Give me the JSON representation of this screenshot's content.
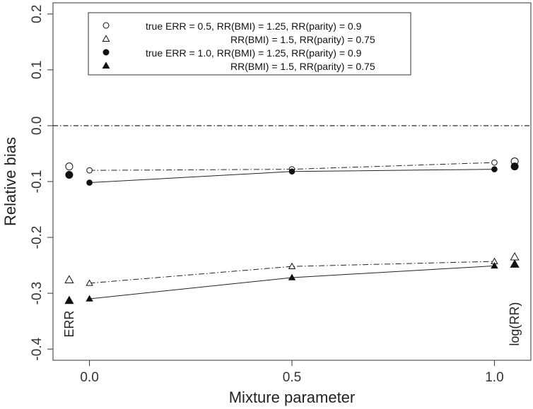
{
  "chart_data": {
    "type": "scatter",
    "xlabel": "Mixture parameter",
    "ylabel": "Relative bias",
    "xlim": [
      -0.09,
      1.09
    ],
    "ylim": [
      -0.42,
      0.22
    ],
    "x_ticks": [
      0.0,
      0.5,
      1.0
    ],
    "x_tick_labels": [
      "0.0",
      "0.5",
      "1.0"
    ],
    "y_ticks": [
      -0.4,
      -0.3,
      -0.2,
      -0.1,
      0.0,
      0.1,
      0.2
    ],
    "y_tick_labels": [
      "-0.4",
      "-0.3",
      "-0.2",
      "-0.1",
      "0.0",
      "0.1",
      "0.2"
    ],
    "reference_line": {
      "y": 0.0,
      "style": "dash-dot"
    },
    "grid": false,
    "legend_position": "top",
    "legend": [
      {
        "marker": "open-circle",
        "text": "true ERR = 0.5,   RR(BMI) = 1.25, RR(parity) = 0.9"
      },
      {
        "marker": "open-triangle",
        "text": "RR(BMI) = 1.5,   RR(parity) = 0.75"
      },
      {
        "marker": "filled-circle",
        "text": "true ERR = 1.0,   RR(BMI) = 1.25, RR(parity) = 0.9"
      },
      {
        "marker": "filled-triangle",
        "text": "RR(BMI) = 1.5,   RR(parity) = 0.75"
      }
    ],
    "annotations": [
      {
        "text": "ERR",
        "x": -0.05,
        "y": -0.355
      },
      {
        "text": "log(RR)",
        "x": 1.05,
        "y": -0.355
      }
    ],
    "series": [
      {
        "marker": "open-circle",
        "line": "dash-dot",
        "points": [
          [
            0.0,
            -0.08
          ],
          [
            0.5,
            -0.078
          ],
          [
            1.0,
            -0.066
          ]
        ],
        "endpoints": [
          [
            -0.05,
            -0.073
          ],
          [
            1.05,
            -0.064
          ]
        ]
      },
      {
        "marker": "filled-circle",
        "line": "solid",
        "points": [
          [
            0.0,
            -0.102
          ],
          [
            0.5,
            -0.082
          ],
          [
            1.0,
            -0.078
          ]
        ],
        "endpoints": [
          [
            -0.05,
            -0.088
          ],
          [
            1.05,
            -0.073
          ]
        ]
      },
      {
        "marker": "open-triangle",
        "line": "dash-dot",
        "points": [
          [
            0.0,
            -0.282
          ],
          [
            0.5,
            -0.252
          ],
          [
            1.0,
            -0.243
          ]
        ],
        "endpoints": [
          [
            -0.05,
            -0.276
          ],
          [
            1.05,
            -0.235
          ]
        ]
      },
      {
        "marker": "filled-triangle",
        "line": "solid",
        "points": [
          [
            0.0,
            -0.31
          ],
          [
            0.5,
            -0.272
          ],
          [
            1.0,
            -0.251
          ]
        ],
        "endpoints": [
          [
            -0.05,
            -0.313
          ],
          [
            1.05,
            -0.248
          ]
        ]
      }
    ]
  }
}
